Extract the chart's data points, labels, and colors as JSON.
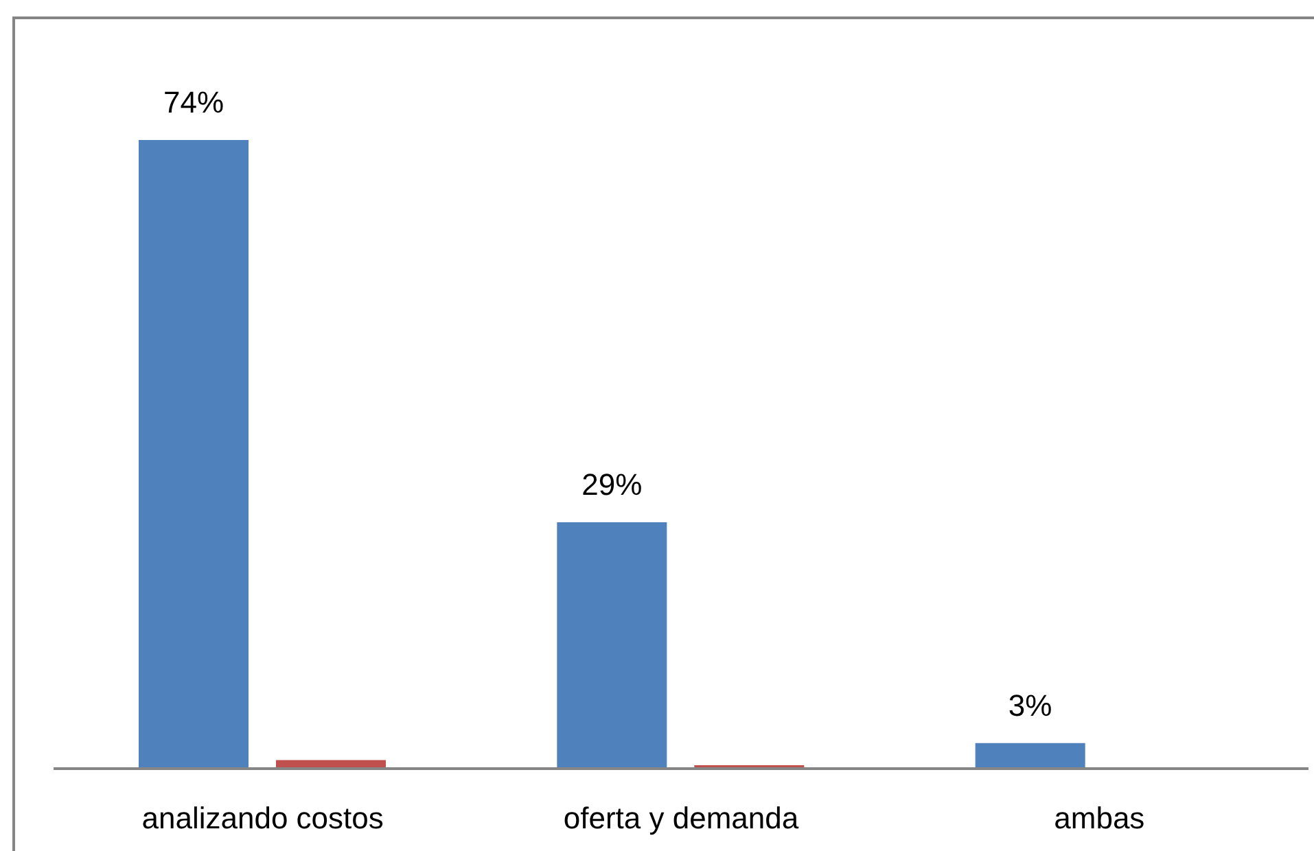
{
  "chart_data": {
    "type": "bar",
    "categories": [
      "analizando costos",
      "oferta y demanda",
      "ambas"
    ],
    "series": [
      {
        "color": "#4f81bd",
        "values": [
          74,
          29,
          3
        ],
        "value_labels": [
          "74%",
          "29%",
          "3%"
        ]
      },
      {
        "color": "#c0504d",
        "values": [
          1,
          0.4,
          null
        ]
      }
    ]
  }
}
